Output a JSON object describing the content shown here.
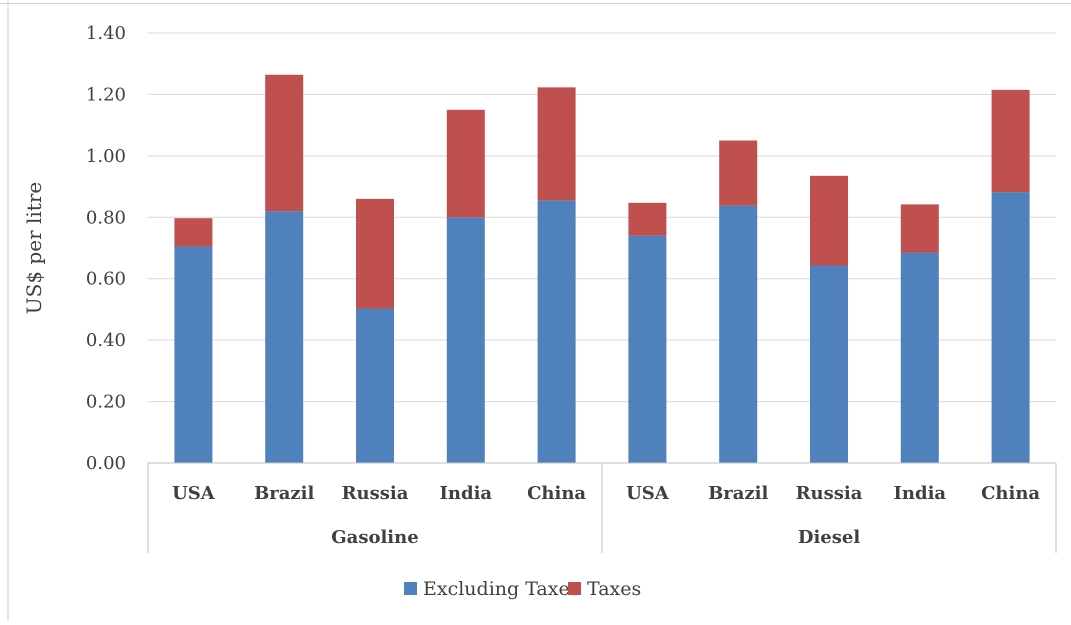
{
  "chart_data": {
    "type": "bar",
    "stacked": true,
    "ylabel": "US$ per litre",
    "ylim": [
      0,
      1.4
    ],
    "yticks": [
      "0.00",
      "0.20",
      "0.40",
      "0.60",
      "0.80",
      "1.00",
      "1.20",
      "1.40"
    ],
    "grid": true,
    "legend_position": "bottom",
    "groups": [
      {
        "label": "Gasoline",
        "categories": [
          "USA",
          "Brazil",
          "Russia",
          "India",
          "China"
        ]
      },
      {
        "label": "Diesel",
        "categories": [
          "USA",
          "Brazil",
          "Russia",
          "India",
          "China"
        ]
      }
    ],
    "series": [
      {
        "name": "Excluding Taxes",
        "color": "#4f81bd",
        "values": [
          0.705,
          0.82,
          0.503,
          0.8,
          0.855,
          0.74,
          0.838,
          0.643,
          0.685,
          0.882
        ]
      },
      {
        "name": "Taxes",
        "color": "#c0504d",
        "values": [
          0.092,
          0.444,
          0.357,
          0.35,
          0.368,
          0.107,
          0.212,
          0.292,
          0.157,
          0.333
        ]
      }
    ]
  }
}
